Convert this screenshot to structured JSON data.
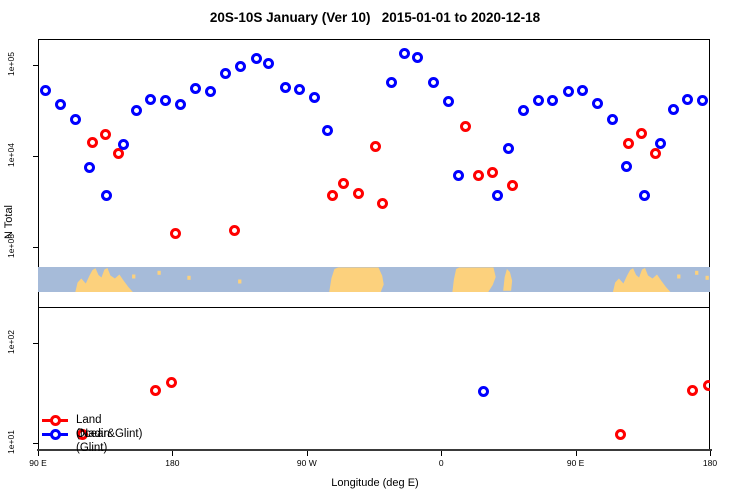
{
  "chart_data": {
    "type": "scatter",
    "title": "20S-10S January (Ver 10)   2015-01-01 to 2020-12-18",
    "xlabel": "Longitude (deg E)",
    "ylabel": "N Total",
    "x_axis": {
      "range_deg": [
        90,
        540
      ],
      "note": "axis runs eastward from 90E wrapping through the antimeridian: 90E,180,90W,0,90E,180",
      "ticks": [
        {
          "deg": 90,
          "label": "90 E"
        },
        {
          "deg": 180,
          "label": "180"
        },
        {
          "deg": 270,
          "label": "90 W"
        },
        {
          "deg": 360,
          "label": "0"
        },
        {
          "deg": 450,
          "label": "90 E"
        },
        {
          "deg": 540,
          "label": "180"
        }
      ]
    },
    "panels": {
      "upper": {
        "scale": "log10",
        "value_range": [
          230,
          190000
        ],
        "ticks": [
          {
            "label": "1e+05",
            "value": 100000
          },
          {
            "label": "1e+04",
            "value": 10000
          },
          {
            "label": "1e+03",
            "value": 1000
          }
        ]
      },
      "lower": {
        "scale": "log10",
        "value_range": [
          8.5,
          230
        ],
        "ticks": [
          {
            "label": "1e+02",
            "value": 100
          },
          {
            "label": "1e+01",
            "value": 10
          }
        ]
      }
    },
    "series": [
      {
        "name": "Land (Nadir&Glint)",
        "color": "#ff0000",
        "upper_points": [
          {
            "deg": 126.8,
            "n": 14000
          },
          {
            "deg": 135.3,
            "n": 17000
          },
          {
            "deg": 144.2,
            "n": 10400
          },
          {
            "deg": 182.2,
            "n": 1400
          },
          {
            "deg": 221.9,
            "n": 1500
          },
          {
            "deg": 287.7,
            "n": 3600
          },
          {
            "deg": 295.1,
            "n": 4900
          },
          {
            "deg": 304.9,
            "n": 3800
          },
          {
            "deg": 316.1,
            "n": 12400
          },
          {
            "deg": 321.2,
            "n": 3000
          },
          {
            "deg": 376.4,
            "n": 21000
          },
          {
            "deg": 385.3,
            "n": 6100
          },
          {
            "deg": 394.9,
            "n": 6500
          },
          {
            "deg": 407.8,
            "n": 4700
          },
          {
            "deg": 485.7,
            "n": 13600
          },
          {
            "deg": 494.6,
            "n": 17500
          },
          {
            "deg": 503.8,
            "n": 10400
          }
        ],
        "lower_points": [
          {
            "deg": 120.1,
            "n": 12
          },
          {
            "deg": 168.8,
            "n": 33
          },
          {
            "deg": 179.7,
            "n": 40
          },
          {
            "deg": 480.2,
            "n": 12
          },
          {
            "deg": 528.6,
            "n": 33
          },
          {
            "deg": 539.3,
            "n": 37
          }
        ]
      },
      {
        "name": "Ocean (Glint)",
        "color": "#0000ff",
        "upper_points": [
          {
            "deg": 95.6,
            "n": 52000
          },
          {
            "deg": 105.2,
            "n": 36000
          },
          {
            "deg": 115.2,
            "n": 25000
          },
          {
            "deg": 124.6,
            "n": 7400
          },
          {
            "deg": 136.4,
            "n": 3600
          },
          {
            "deg": 147.4,
            "n": 13200
          },
          {
            "deg": 156.3,
            "n": 31000
          },
          {
            "deg": 165.9,
            "n": 41000
          },
          {
            "deg": 175.5,
            "n": 40000
          },
          {
            "deg": 186.0,
            "n": 36000
          },
          {
            "deg": 196.0,
            "n": 54000
          },
          {
            "deg": 205.6,
            "n": 50000
          },
          {
            "deg": 215.7,
            "n": 80000
          },
          {
            "deg": 225.9,
            "n": 96000
          },
          {
            "deg": 236.4,
            "n": 116000
          },
          {
            "deg": 244.7,
            "n": 102000
          },
          {
            "deg": 256.1,
            "n": 56000
          },
          {
            "deg": 265.4,
            "n": 53000
          },
          {
            "deg": 275.5,
            "n": 43000
          },
          {
            "deg": 284.4,
            "n": 19000
          },
          {
            "deg": 327.2,
            "n": 63000
          },
          {
            "deg": 335.7,
            "n": 131000
          },
          {
            "deg": 344.6,
            "n": 120000
          },
          {
            "deg": 355.3,
            "n": 64000
          },
          {
            "deg": 365.2,
            "n": 39000
          },
          {
            "deg": 372.1,
            "n": 6100
          },
          {
            "deg": 397.8,
            "n": 3600
          },
          {
            "deg": 405.6,
            "n": 12000
          },
          {
            "deg": 415.6,
            "n": 31000
          },
          {
            "deg": 425.4,
            "n": 40000
          },
          {
            "deg": 435.0,
            "n": 40000
          },
          {
            "deg": 445.5,
            "n": 50000
          },
          {
            "deg": 454.7,
            "n": 52000
          },
          {
            "deg": 464.7,
            "n": 37000
          },
          {
            "deg": 474.8,
            "n": 25000
          },
          {
            "deg": 484.2,
            "n": 7500
          },
          {
            "deg": 496.4,
            "n": 3600
          },
          {
            "deg": 506.9,
            "n": 13600
          },
          {
            "deg": 515.8,
            "n": 32000
          },
          {
            "deg": 525.4,
            "n": 41000
          },
          {
            "deg": 535.0,
            "n": 40000
          }
        ],
        "lower_points": [
          {
            "deg": 388.4,
            "n": 32
          }
        ]
      }
    ],
    "map_strip": {
      "ocean_color": "#a6bbd9",
      "land_color": "#fcd17d",
      "lands": [
        {
          "name": "australia",
          "poly": [
            [
              115,
              1
            ],
            [
              116.5,
              0.62
            ],
            [
              119,
              0.46
            ],
            [
              122,
              0.66
            ],
            [
              124.5,
              0.34
            ],
            [
              126.5,
              0.12
            ],
            [
              128.5,
              0.05
            ],
            [
              130.5,
              0.32
            ],
            [
              132.5,
              0.42
            ],
            [
              134.5,
              0.1
            ],
            [
              136.5,
              0.04
            ],
            [
              138.5,
              0.34
            ],
            [
              141.5,
              0.46
            ],
            [
              144.5,
              0.3
            ],
            [
              147.5,
              0.56
            ],
            [
              150.5,
              0.8
            ],
            [
              153.5,
              1
            ]
          ]
        },
        {
          "name": "south-america",
          "poly": [
            [
              285,
              1
            ],
            [
              286.5,
              0.45
            ],
            [
              288.5,
              0.08
            ],
            [
              291,
              0.02
            ],
            [
              318,
              0.02
            ],
            [
              320.5,
              0.35
            ],
            [
              321.5,
              0.7
            ],
            [
              319.5,
              1
            ]
          ]
        },
        {
          "name": "africa",
          "poly": [
            [
              367.5,
              1
            ],
            [
              368.5,
              0.5
            ],
            [
              370,
              0.08
            ],
            [
              372,
              0.02
            ],
            [
              395,
              0.02
            ],
            [
              396.5,
              0.4
            ],
            [
              394.5,
              0.72
            ],
            [
              391.5,
              1
            ]
          ]
        },
        {
          "name": "madagascar",
          "poly": [
            [
              401.5,
              0.95
            ],
            [
              402.5,
              0.4
            ],
            [
              404,
              0.08
            ],
            [
              406,
              0.2
            ],
            [
              407.5,
              0.55
            ],
            [
              406.8,
              0.95
            ]
          ]
        },
        {
          "name": "australia-wrap",
          "poly": [
            [
              475,
              1
            ],
            [
              476.5,
              0.62
            ],
            [
              479,
              0.46
            ],
            [
              482,
              0.66
            ],
            [
              484.5,
              0.34
            ],
            [
              486.5,
              0.12
            ],
            [
              488.5,
              0.05
            ],
            [
              490.5,
              0.32
            ],
            [
              492.5,
              0.42
            ],
            [
              494.5,
              0.1
            ],
            [
              496.5,
              0.04
            ],
            [
              498.5,
              0.34
            ],
            [
              501.5,
              0.46
            ],
            [
              504.5,
              0.3
            ],
            [
              507.5,
              0.56
            ],
            [
              510.5,
              0.8
            ],
            [
              513.5,
              1
            ]
          ]
        }
      ],
      "islands": [
        [
          153,
          0.3
        ],
        [
          170,
          0.15
        ],
        [
          190,
          0.35
        ],
        [
          224,
          0.5
        ],
        [
          518,
          0.3
        ],
        [
          530,
          0.15
        ],
        [
          537,
          0.35
        ]
      ]
    },
    "legend": {
      "items": [
        {
          "label": "Land (Nadir&Glint)",
          "color": "#ff0000"
        },
        {
          "label": "Ocean (Glint)",
          "color": "#0000ff"
        }
      ]
    }
  }
}
